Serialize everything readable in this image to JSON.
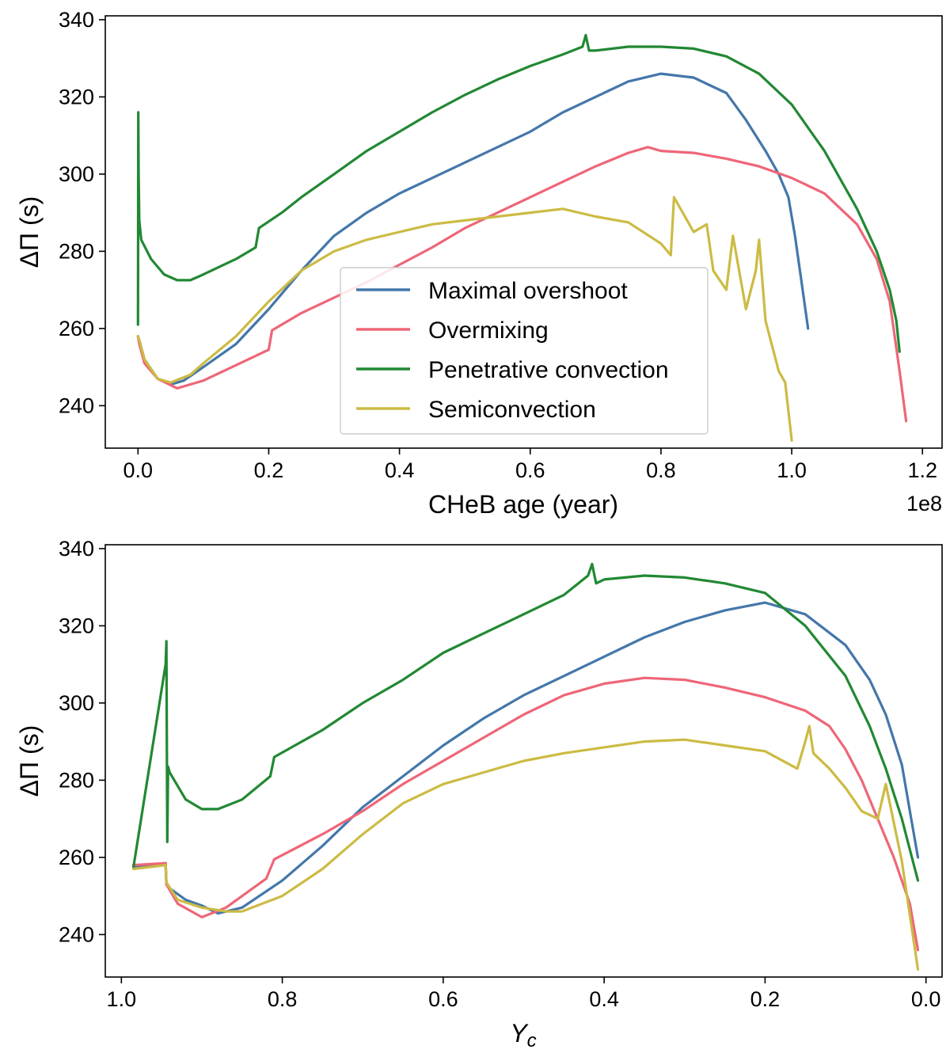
{
  "colors": {
    "maximal": "#4477AA",
    "overmixing": "#EE6677",
    "penetrative": "#228833",
    "semiconvection": "#CCBB44"
  },
  "legend": {
    "items": [
      {
        "key": "maximal",
        "label": "Maximal overshoot"
      },
      {
        "key": "overmixing",
        "label": "Overmixing"
      },
      {
        "key": "penetrative",
        "label": "Penetrative convection"
      },
      {
        "key": "semiconvection",
        "label": "Semiconvection"
      }
    ]
  },
  "chart_data": [
    {
      "type": "line",
      "title": "",
      "xlabel": "CHeB age (year)",
      "ylabel": "ΔΠ (s)",
      "x_offset_text": "1e8",
      "xlim": [
        -0.05,
        1.23
      ],
      "ylim": [
        229,
        341
      ],
      "xticks": [
        0.0,
        0.2,
        0.4,
        0.6,
        0.8,
        1.0,
        1.2
      ],
      "xtick_labels": [
        "0.0",
        "0.2",
        "0.4",
        "0.6",
        "0.8",
        "1.0",
        "1.2"
      ],
      "yticks": [
        240,
        260,
        280,
        300,
        320,
        340
      ],
      "ytick_labels": [
        "240",
        "260",
        "280",
        "300",
        "320",
        "340"
      ],
      "legend_position": "lower-center",
      "series": [
        {
          "name": "Maximal overshoot",
          "key": "maximal",
          "x": [
            0.0,
            0.002,
            0.01,
            0.03,
            0.05,
            0.07,
            0.1,
            0.15,
            0.2,
            0.25,
            0.3,
            0.35,
            0.4,
            0.45,
            0.5,
            0.55,
            0.6,
            0.65,
            0.7,
            0.75,
            0.8,
            0.85,
            0.9,
            0.93,
            0.96,
            0.98,
            0.995,
            1.005,
            1.015,
            1.025
          ],
          "y": [
            258,
            257,
            252,
            247,
            245.5,
            246.5,
            250,
            256,
            265,
            275,
            284,
            290,
            295,
            299,
            303,
            307,
            311,
            316,
            320,
            324,
            326,
            325,
            321,
            314,
            306,
            300,
            294,
            284,
            272,
            260
          ]
        },
        {
          "name": "Overmixing",
          "key": "overmixing",
          "x": [
            0.0,
            0.002,
            0.01,
            0.03,
            0.06,
            0.1,
            0.15,
            0.2,
            0.205,
            0.25,
            0.3,
            0.35,
            0.4,
            0.45,
            0.5,
            0.55,
            0.6,
            0.65,
            0.7,
            0.75,
            0.78,
            0.8,
            0.85,
            0.9,
            0.95,
            1.0,
            1.05,
            1.1,
            1.13,
            1.15,
            1.165,
            1.175
          ],
          "y": [
            258,
            256,
            251,
            247,
            244.5,
            246.5,
            250.5,
            254.5,
            259.5,
            264,
            268,
            272,
            276.5,
            281,
            286,
            290,
            294,
            298,
            302,
            305.5,
            307,
            306,
            305.5,
            304,
            302,
            299,
            295,
            287,
            278,
            267,
            249,
            236
          ]
        },
        {
          "name": "Penetrative convection",
          "key": "penetrative",
          "x": [
            0.0,
            0.0005,
            0.001,
            0.002,
            0.005,
            0.02,
            0.04,
            0.06,
            0.08,
            0.1,
            0.15,
            0.18,
            0.185,
            0.22,
            0.25,
            0.3,
            0.35,
            0.4,
            0.45,
            0.5,
            0.55,
            0.6,
            0.65,
            0.68,
            0.685,
            0.69,
            0.7,
            0.75,
            0.8,
            0.85,
            0.9,
            0.95,
            1.0,
            1.05,
            1.1,
            1.13,
            1.15,
            1.16,
            1.165
          ],
          "y": [
            261,
            316,
            300,
            288,
            283,
            278,
            274,
            272.5,
            272.5,
            274,
            278,
            281,
            286,
            290,
            294,
            300,
            306,
            311,
            316,
            320.5,
            324.5,
            328,
            331,
            333,
            336,
            332,
            332,
            333,
            333,
            332.5,
            330.5,
            326,
            318,
            306,
            291,
            280,
            270,
            262,
            254
          ]
        },
        {
          "name": "Semiconvection",
          "key": "semiconvection",
          "x": [
            0.0,
            0.002,
            0.01,
            0.03,
            0.05,
            0.08,
            0.1,
            0.15,
            0.2,
            0.25,
            0.3,
            0.35,
            0.4,
            0.45,
            0.5,
            0.55,
            0.6,
            0.65,
            0.7,
            0.75,
            0.8,
            0.815,
            0.82,
            0.85,
            0.87,
            0.88,
            0.9,
            0.91,
            0.93,
            0.945,
            0.95,
            0.96,
            0.98,
            0.99,
            1.0
          ],
          "y": [
            258,
            257,
            252,
            247,
            246,
            248,
            251,
            258,
            267,
            275,
            280,
            283,
            285,
            287,
            288,
            289,
            290,
            291,
            289,
            287.5,
            282,
            279,
            294,
            285,
            287,
            275,
            270,
            284,
            265,
            275,
            283,
            262,
            249,
            246,
            231
          ]
        }
      ]
    },
    {
      "type": "line",
      "title": "",
      "xlabel": "Y_c",
      "ylabel": "ΔΠ (s)",
      "xlim": [
        1.02,
        -0.02
      ],
      "ylim": [
        229,
        341
      ],
      "xticks": [
        1.0,
        0.8,
        0.6,
        0.4,
        0.2,
        0.0
      ],
      "xtick_labels": [
        "1.0",
        "0.8",
        "0.6",
        "0.4",
        "0.2",
        "0.0"
      ],
      "yticks": [
        240,
        260,
        280,
        300,
        320,
        340
      ],
      "ytick_labels": [
        "240",
        "260",
        "280",
        "300",
        "320",
        "340"
      ],
      "series": [
        {
          "name": "Maximal overshoot",
          "key": "maximal",
          "x": [
            0.985,
            0.945,
            0.944,
            0.94,
            0.92,
            0.9,
            0.88,
            0.85,
            0.8,
            0.75,
            0.7,
            0.65,
            0.6,
            0.55,
            0.5,
            0.45,
            0.4,
            0.35,
            0.3,
            0.25,
            0.2,
            0.15,
            0.1,
            0.07,
            0.05,
            0.03,
            0.02,
            0.01
          ],
          "y": [
            257.5,
            258.5,
            253,
            252,
            249,
            247.5,
            245.5,
            247,
            254,
            263,
            273,
            281,
            289,
            296,
            302,
            307,
            312,
            317,
            321,
            324,
            326,
            323,
            315,
            306,
            297,
            284,
            272,
            260
          ]
        },
        {
          "name": "Overmixing",
          "key": "overmixing",
          "x": [
            0.985,
            0.945,
            0.944,
            0.93,
            0.9,
            0.87,
            0.82,
            0.81,
            0.75,
            0.7,
            0.65,
            0.6,
            0.55,
            0.5,
            0.45,
            0.4,
            0.35,
            0.3,
            0.25,
            0.2,
            0.15,
            0.12,
            0.1,
            0.08,
            0.06,
            0.04,
            0.02,
            0.01
          ],
          "y": [
            258,
            258.5,
            253,
            248,
            244.5,
            247,
            254.5,
            259.5,
            266,
            272,
            279,
            285,
            291,
            297,
            302,
            305,
            306.5,
            306,
            304,
            301.5,
            298,
            294,
            288,
            280,
            270,
            260,
            248,
            236
          ]
        },
        {
          "name": "Penetrative convection",
          "key": "penetrative",
          "x": [
            0.985,
            0.945,
            0.944,
            0.943,
            0.942,
            0.94,
            0.92,
            0.9,
            0.88,
            0.85,
            0.815,
            0.81,
            0.75,
            0.7,
            0.65,
            0.6,
            0.55,
            0.5,
            0.45,
            0.42,
            0.415,
            0.41,
            0.4,
            0.35,
            0.3,
            0.25,
            0.2,
            0.15,
            0.1,
            0.07,
            0.05,
            0.03,
            0.02,
            0.01
          ],
          "y": [
            257.5,
            310,
            316,
            264,
            283.5,
            282,
            275,
            272.5,
            272.5,
            275,
            281,
            286,
            293,
            300,
            306,
            313,
            318,
            323,
            328,
            333,
            336,
            331,
            332,
            333,
            332.5,
            331,
            328.5,
            320,
            307,
            294,
            283,
            270,
            262,
            254
          ]
        },
        {
          "name": "Semiconvection",
          "key": "semiconvection",
          "x": [
            0.985,
            0.945,
            0.944,
            0.93,
            0.9,
            0.87,
            0.85,
            0.8,
            0.75,
            0.7,
            0.65,
            0.6,
            0.55,
            0.5,
            0.45,
            0.4,
            0.35,
            0.3,
            0.25,
            0.2,
            0.16,
            0.15,
            0.145,
            0.14,
            0.12,
            0.1,
            0.08,
            0.06,
            0.05,
            0.03,
            0.01
          ],
          "y": [
            257,
            258,
            253.5,
            249,
            247,
            246,
            246,
            250,
            257,
            266,
            274,
            279,
            282,
            285,
            287,
            288.5,
            290,
            290.5,
            289,
            287.5,
            283,
            290,
            294,
            287,
            283,
            278,
            272,
            270,
            279,
            259,
            231
          ]
        }
      ]
    }
  ]
}
